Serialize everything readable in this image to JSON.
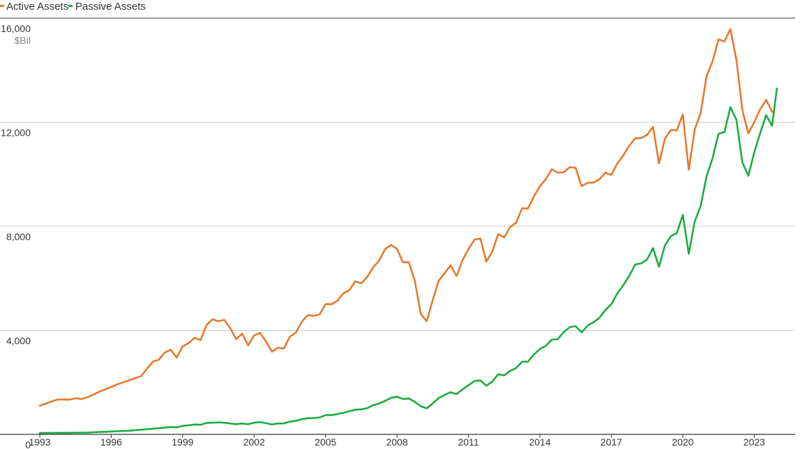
{
  "chart_data": {
    "type": "line",
    "title": "",
    "xlabel": "",
    "ylabel": "",
    "y_unit_label": "$Bil",
    "xlim": [
      1993,
      2023.75
    ],
    "ylim": [
      0,
      16000
    ],
    "grid": "horizontal",
    "legend_position": "top-left",
    "x_ticks": [
      1993,
      1996,
      1999,
      2002,
      2005,
      2008,
      2011,
      2014,
      2017,
      2020,
      2023
    ],
    "x_tick_labels": [
      "1993",
      "1996",
      "1999",
      "2002",
      "2005",
      "2008",
      "2011",
      "2014",
      "2017",
      "2020",
      "2023"
    ],
    "y_ticks": [
      0,
      4000,
      8000,
      12000,
      16000
    ],
    "y_tick_labels": [
      "0",
      "4,000",
      "8,000",
      "12,000",
      "16,000"
    ],
    "series": [
      {
        "name": "Active Assets",
        "color": "#e8782a",
        "points": [
          [
            1993.0,
            1100
          ],
          [
            1993.25,
            1180
          ],
          [
            1993.5,
            1270
          ],
          [
            1993.75,
            1340
          ],
          [
            1994.0,
            1340
          ],
          [
            1994.25,
            1335
          ],
          [
            1994.5,
            1390
          ],
          [
            1994.75,
            1360
          ],
          [
            1995.0,
            1430
          ],
          [
            1995.25,
            1530
          ],
          [
            1995.5,
            1640
          ],
          [
            1995.75,
            1730
          ],
          [
            1996.0,
            1820
          ],
          [
            1996.25,
            1920
          ],
          [
            1996.5,
            2000
          ],
          [
            1996.75,
            2080
          ],
          [
            1997.0,
            2160
          ],
          [
            1997.25,
            2240
          ],
          [
            1997.5,
            2520
          ],
          [
            1997.75,
            2800
          ],
          [
            1998.0,
            2870
          ],
          [
            1998.25,
            3150
          ],
          [
            1998.5,
            3250
          ],
          [
            1998.75,
            2950
          ],
          [
            1999.0,
            3380
          ],
          [
            1999.25,
            3510
          ],
          [
            1999.5,
            3710
          ],
          [
            1999.75,
            3620
          ],
          [
            2000.0,
            4200
          ],
          [
            2000.25,
            4420
          ],
          [
            2000.5,
            4350
          ],
          [
            2000.75,
            4400
          ],
          [
            2001.0,
            4080
          ],
          [
            2001.25,
            3660
          ],
          [
            2001.5,
            3870
          ],
          [
            2001.75,
            3420
          ],
          [
            2002.0,
            3800
          ],
          [
            2002.25,
            3900
          ],
          [
            2002.5,
            3570
          ],
          [
            2002.75,
            3180
          ],
          [
            2003.0,
            3330
          ],
          [
            2003.25,
            3300
          ],
          [
            2003.5,
            3750
          ],
          [
            2003.75,
            3910
          ],
          [
            2004.0,
            4330
          ],
          [
            2004.25,
            4580
          ],
          [
            2004.5,
            4560
          ],
          [
            2004.75,
            4610
          ],
          [
            2005.0,
            5010
          ],
          [
            2005.25,
            5000
          ],
          [
            2005.5,
            5140
          ],
          [
            2005.75,
            5420
          ],
          [
            2006.0,
            5550
          ],
          [
            2006.25,
            5880
          ],
          [
            2006.5,
            5810
          ],
          [
            2006.75,
            6050
          ],
          [
            2007.0,
            6420
          ],
          [
            2007.25,
            6680
          ],
          [
            2007.5,
            7120
          ],
          [
            2007.75,
            7280
          ],
          [
            2008.0,
            7130
          ],
          [
            2008.25,
            6620
          ],
          [
            2008.5,
            6610
          ],
          [
            2008.75,
            5890
          ],
          [
            2009.0,
            4630
          ],
          [
            2009.25,
            4350
          ],
          [
            2009.5,
            5160
          ],
          [
            2009.75,
            5910
          ],
          [
            2010.0,
            6190
          ],
          [
            2010.25,
            6500
          ],
          [
            2010.5,
            6090
          ],
          [
            2010.75,
            6690
          ],
          [
            2011.0,
            7120
          ],
          [
            2011.25,
            7480
          ],
          [
            2011.5,
            7530
          ],
          [
            2011.75,
            6640
          ],
          [
            2012.0,
            7020
          ],
          [
            2012.25,
            7700
          ],
          [
            2012.5,
            7570
          ],
          [
            2012.75,
            7970
          ],
          [
            2013.0,
            8130
          ],
          [
            2013.25,
            8690
          ],
          [
            2013.5,
            8680
          ],
          [
            2013.75,
            9150
          ],
          [
            2014.0,
            9540
          ],
          [
            2014.25,
            9810
          ],
          [
            2014.5,
            10190
          ],
          [
            2014.75,
            10060
          ],
          [
            2015.0,
            10070
          ],
          [
            2015.25,
            10270
          ],
          [
            2015.5,
            10250
          ],
          [
            2015.75,
            9540
          ],
          [
            2016.0,
            9670
          ],
          [
            2016.25,
            9680
          ],
          [
            2016.5,
            9800
          ],
          [
            2016.75,
            10060
          ],
          [
            2017.0,
            9970
          ],
          [
            2017.25,
            10410
          ],
          [
            2017.5,
            10720
          ],
          [
            2017.75,
            11090
          ],
          [
            2018.0,
            11380
          ],
          [
            2018.25,
            11390
          ],
          [
            2018.5,
            11510
          ],
          [
            2018.75,
            11820
          ],
          [
            2019.0,
            10410
          ],
          [
            2019.25,
            11360
          ],
          [
            2019.5,
            11700
          ],
          [
            2019.75,
            11690
          ],
          [
            2020.0,
            12300
          ],
          [
            2020.25,
            10170
          ],
          [
            2020.5,
            11710
          ],
          [
            2020.75,
            12360
          ],
          [
            2021.0,
            13770
          ],
          [
            2021.25,
            14340
          ],
          [
            2021.5,
            15180
          ],
          [
            2021.75,
            15100
          ],
          [
            2022.0,
            15580
          ],
          [
            2022.25,
            14400
          ],
          [
            2022.5,
            12470
          ],
          [
            2022.75,
            11570
          ],
          [
            2023.0,
            12000
          ],
          [
            2023.25,
            12500
          ],
          [
            2023.5,
            12860
          ],
          [
            2023.75,
            12400
          ]
        ]
      },
      {
        "name": "Passive Assets",
        "color": "#1aab40",
        "points": [
          [
            1993.0,
            50
          ],
          [
            1993.25,
            55
          ],
          [
            1993.5,
            55
          ],
          [
            1993.75,
            60
          ],
          [
            1994.0,
            60
          ],
          [
            1994.25,
            60
          ],
          [
            1994.5,
            65
          ],
          [
            1994.75,
            65
          ],
          [
            1995.0,
            70
          ],
          [
            1995.25,
            80
          ],
          [
            1995.5,
            90
          ],
          [
            1995.75,
            100
          ],
          [
            1996.0,
            110
          ],
          [
            1996.25,
            120
          ],
          [
            1996.5,
            130
          ],
          [
            1996.75,
            140
          ],
          [
            1997.0,
            160
          ],
          [
            1997.25,
            180
          ],
          [
            1997.5,
            200
          ],
          [
            1997.75,
            220
          ],
          [
            1998.0,
            240
          ],
          [
            1998.25,
            260
          ],
          [
            1998.5,
            280
          ],
          [
            1998.75,
            270
          ],
          [
            1999.0,
            330
          ],
          [
            1999.25,
            350
          ],
          [
            1999.5,
            380
          ],
          [
            1999.75,
            370
          ],
          [
            2000.0,
            440
          ],
          [
            2000.25,
            450
          ],
          [
            2000.5,
            460
          ],
          [
            2000.75,
            450
          ],
          [
            2001.0,
            420
          ],
          [
            2001.25,
            390
          ],
          [
            2001.5,
            420
          ],
          [
            2001.75,
            390
          ],
          [
            2002.0,
            450
          ],
          [
            2002.25,
            470
          ],
          [
            2002.5,
            430
          ],
          [
            2002.75,
            380
          ],
          [
            2003.0,
            420
          ],
          [
            2003.25,
            420
          ],
          [
            2003.5,
            490
          ],
          [
            2003.75,
            520
          ],
          [
            2004.0,
            580
          ],
          [
            2004.25,
            620
          ],
          [
            2004.5,
            630
          ],
          [
            2004.75,
            650
          ],
          [
            2005.0,
            740
          ],
          [
            2005.25,
            740
          ],
          [
            2005.5,
            780
          ],
          [
            2005.75,
            830
          ],
          [
            2006.0,
            890
          ],
          [
            2006.25,
            950
          ],
          [
            2006.5,
            960
          ],
          [
            2006.75,
            1010
          ],
          [
            2007.0,
            1120
          ],
          [
            2007.25,
            1190
          ],
          [
            2007.5,
            1290
          ],
          [
            2007.75,
            1400
          ],
          [
            2008.0,
            1450
          ],
          [
            2008.25,
            1360
          ],
          [
            2008.5,
            1380
          ],
          [
            2008.75,
            1250
          ],
          [
            2009.0,
            1080
          ],
          [
            2009.25,
            1000
          ],
          [
            2009.5,
            1190
          ],
          [
            2009.75,
            1400
          ],
          [
            2010.0,
            1520
          ],
          [
            2010.25,
            1620
          ],
          [
            2010.5,
            1550
          ],
          [
            2010.75,
            1730
          ],
          [
            2011.0,
            1890
          ],
          [
            2011.25,
            2050
          ],
          [
            2011.5,
            2080
          ],
          [
            2011.75,
            1870
          ],
          [
            2012.0,
            2030
          ],
          [
            2012.25,
            2310
          ],
          [
            2012.5,
            2270
          ],
          [
            2012.75,
            2440
          ],
          [
            2013.0,
            2550
          ],
          [
            2013.25,
            2790
          ],
          [
            2013.5,
            2800
          ],
          [
            2013.75,
            3070
          ],
          [
            2014.0,
            3280
          ],
          [
            2014.25,
            3400
          ],
          [
            2014.5,
            3640
          ],
          [
            2014.75,
            3660
          ],
          [
            2015.0,
            3930
          ],
          [
            2015.25,
            4120
          ],
          [
            2015.5,
            4160
          ],
          [
            2015.75,
            3920
          ],
          [
            2016.0,
            4180
          ],
          [
            2016.25,
            4310
          ],
          [
            2016.5,
            4480
          ],
          [
            2016.75,
            4780
          ],
          [
            2017.0,
            5000
          ],
          [
            2017.25,
            5410
          ],
          [
            2017.5,
            5730
          ],
          [
            2017.75,
            6090
          ],
          [
            2018.0,
            6530
          ],
          [
            2018.25,
            6570
          ],
          [
            2018.5,
            6720
          ],
          [
            2018.75,
            7160
          ],
          [
            2019.0,
            6440
          ],
          [
            2019.25,
            7260
          ],
          [
            2019.5,
            7620
          ],
          [
            2019.75,
            7740
          ],
          [
            2020.0,
            8440
          ],
          [
            2020.25,
            6940
          ],
          [
            2020.5,
            8180
          ],
          [
            2020.75,
            8780
          ],
          [
            2021.0,
            9930
          ],
          [
            2021.25,
            10610
          ],
          [
            2021.5,
            11550
          ],
          [
            2021.75,
            11620
          ],
          [
            2022.0,
            12580
          ],
          [
            2022.25,
            12090
          ],
          [
            2022.5,
            10460
          ],
          [
            2022.75,
            9940
          ],
          [
            2023.0,
            10840
          ],
          [
            2023.25,
            11580
          ],
          [
            2023.5,
            12270
          ],
          [
            2023.75,
            11860
          ],
          [
            2023.95,
            13290
          ]
        ]
      }
    ]
  }
}
